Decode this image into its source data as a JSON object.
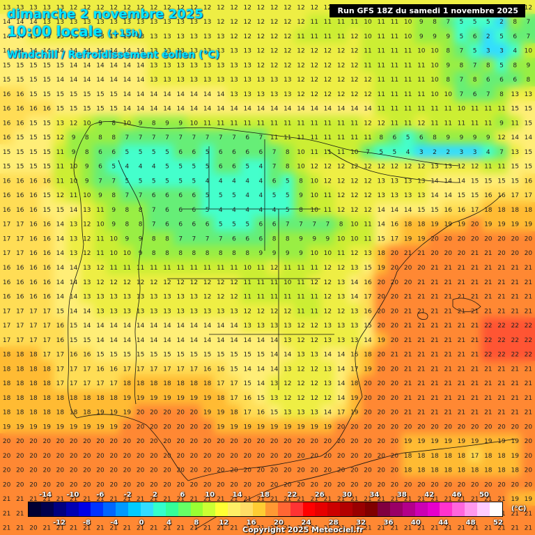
{
  "header": {
    "date_line": "dimanche 2 novembre 2025",
    "time_line": "10:00 locale",
    "lead_time": "(+15h)",
    "variable_line": "Windchill / Refroidissement éolien (°C)",
    "run_label": "Run GFS 18Z du samedi 1 novembre 2025"
  },
  "legend": {
    "unit": "(°C)",
    "top_labels": [
      "-14",
      "-10",
      "-6",
      "-2",
      "2",
      "6",
      "10",
      "14",
      "18",
      "22",
      "26",
      "30",
      "34",
      "38",
      "42",
      "46",
      "50"
    ],
    "bottom_labels": [
      "-12",
      "-8",
      "-4",
      "0",
      "4",
      "8",
      "12",
      "16",
      "20",
      "24",
      "28",
      "32",
      "36",
      "40",
      "44",
      "48",
      "52"
    ],
    "colors": [
      "#000033",
      "#00004d",
      "#000080",
      "#0000b3",
      "#0000e6",
      "#0033ff",
      "#0066ff",
      "#0099ff",
      "#00ccff",
      "#33ddff",
      "#33ffcc",
      "#33ff99",
      "#66ff66",
      "#99ff33",
      "#ccff33",
      "#ffff33",
      "#ffee66",
      "#ffdd66",
      "#ffcc33",
      "#ff9933",
      "#ff6633",
      "#ff3333",
      "#ff0000",
      "#e60000",
      "#cc0000",
      "#b30000",
      "#990000",
      "#800000",
      "#800040",
      "#990066",
      "#b3008a",
      "#cc00b3",
      "#e600cc",
      "#ff33cc",
      "#ff66dd",
      "#ff99ee",
      "#ffccff",
      "#ffffff"
    ]
  },
  "copyright": "Copyright 2025 Meteociel.fr",
  "grid": {
    "rows": [
      [
        13,
        13,
        13,
        13,
        13,
        12,
        12,
        12,
        12,
        12,
        12,
        12,
        12,
        12,
        12,
        12,
        12,
        12,
        12,
        12,
        12,
        12,
        12,
        12,
        12,
        12,
        12,
        12,
        12,
        12,
        12,
        12,
        12,
        12,
        12,
        12,
        12,
        12,
        12,
        12
      ],
      [
        14,
        14,
        14,
        13,
        13,
        13,
        13,
        13,
        13,
        13,
        13,
        13,
        13,
        13,
        13,
        13,
        12,
        12,
        12,
        12,
        12,
        12,
        12,
        11,
        11,
        11,
        11,
        10,
        11,
        11,
        10,
        9,
        8,
        7,
        5,
        5,
        5,
        2,
        8,
        7
      ],
      [
        14,
        14,
        13,
        13,
        13,
        13,
        13,
        13,
        13,
        13,
        13,
        13,
        13,
        13,
        13,
        13,
        13,
        12,
        12,
        12,
        12,
        12,
        11,
        11,
        11,
        11,
        12,
        10,
        11,
        11,
        10,
        9,
        9,
        9,
        5,
        6,
        2,
        5,
        6,
        7
      ],
      [
        14,
        14,
        14,
        14,
        14,
        14,
        14,
        14,
        14,
        14,
        14,
        13,
        13,
        13,
        13,
        13,
        13,
        13,
        13,
        12,
        12,
        12,
        12,
        12,
        12,
        12,
        12,
        11,
        11,
        11,
        11,
        10,
        10,
        8,
        7,
        5,
        3,
        3,
        4,
        10
      ],
      [
        15,
        15,
        15,
        15,
        15,
        14,
        14,
        14,
        14,
        14,
        14,
        13,
        13,
        13,
        13,
        13,
        13,
        13,
        13,
        12,
        12,
        12,
        12,
        12,
        12,
        12,
        12,
        11,
        11,
        11,
        11,
        11,
        10,
        9,
        8,
        7,
        8,
        5,
        8,
        9
      ],
      [
        15,
        15,
        15,
        15,
        14,
        14,
        14,
        14,
        14,
        14,
        14,
        13,
        13,
        13,
        13,
        13,
        13,
        13,
        13,
        13,
        13,
        13,
        12,
        12,
        12,
        12,
        12,
        12,
        11,
        11,
        11,
        11,
        10,
        8,
        7,
        8,
        6,
        6,
        6,
        8
      ],
      [
        16,
        16,
        15,
        15,
        15,
        15,
        15,
        15,
        15,
        14,
        14,
        14,
        14,
        14,
        14,
        14,
        14,
        13,
        13,
        13,
        13,
        13,
        12,
        12,
        12,
        12,
        12,
        12,
        11,
        11,
        11,
        11,
        10,
        10,
        7,
        6,
        7,
        8,
        13,
        13
      ],
      [
        16,
        16,
        16,
        16,
        15,
        15,
        15,
        15,
        15,
        14,
        14,
        14,
        14,
        14,
        14,
        14,
        14,
        14,
        14,
        14,
        14,
        14,
        14,
        14,
        14,
        14,
        14,
        14,
        11,
        11,
        11,
        11,
        11,
        11,
        10,
        11,
        11,
        11,
        15,
        15
      ],
      [
        16,
        16,
        15,
        15,
        13,
        12,
        10,
        9,
        8,
        10,
        9,
        8,
        9,
        9,
        10,
        11,
        11,
        11,
        11,
        11,
        11,
        11,
        11,
        11,
        11,
        11,
        11,
        12,
        12,
        11,
        11,
        12,
        11,
        11,
        11,
        11,
        11,
        9,
        11,
        15
      ],
      [
        16,
        15,
        15,
        15,
        12,
        9,
        8,
        8,
        8,
        7,
        7,
        7,
        7,
        7,
        7,
        7,
        7,
        7,
        6,
        7,
        11,
        11,
        11,
        11,
        11,
        11,
        11,
        11,
        8,
        6,
        5,
        6,
        8,
        9,
        9,
        9,
        9,
        12,
        14,
        14
      ],
      [
        15,
        15,
        15,
        15,
        11,
        9,
        8,
        6,
        6,
        5,
        5,
        5,
        5,
        6,
        6,
        5,
        6,
        6,
        6,
        6,
        7,
        8,
        10,
        11,
        11,
        11,
        10,
        7,
        5,
        5,
        4,
        3,
        2,
        2,
        3,
        3,
        4,
        7,
        13,
        15
      ],
      [
        15,
        15,
        15,
        15,
        11,
        10,
        9,
        6,
        5,
        4,
        4,
        4,
        5,
        5,
        5,
        5,
        6,
        6,
        5,
        4,
        7,
        8,
        10,
        12,
        12,
        12,
        12,
        12,
        12,
        12,
        12,
        12,
        13,
        13,
        12,
        12,
        11,
        11,
        15,
        15
      ],
      [
        16,
        16,
        16,
        16,
        11,
        10,
        9,
        7,
        7,
        5,
        5,
        5,
        5,
        5,
        5,
        4,
        4,
        4,
        4,
        4,
        6,
        5,
        8,
        10,
        12,
        12,
        12,
        12,
        13,
        13,
        13,
        13,
        14,
        14,
        14,
        15,
        15,
        15,
        15,
        16
      ],
      [
        16,
        16,
        16,
        15,
        12,
        11,
        10,
        9,
        8,
        7,
        7,
        6,
        6,
        6,
        6,
        5,
        5,
        5,
        4,
        4,
        5,
        5,
        9,
        10,
        11,
        12,
        12,
        12,
        13,
        13,
        13,
        13,
        14,
        14,
        15,
        15,
        16,
        16,
        17,
        17
      ],
      [
        16,
        16,
        16,
        15,
        15,
        14,
        13,
        11,
        9,
        8,
        8,
        7,
        6,
        6,
        6,
        5,
        4,
        4,
        4,
        4,
        4,
        5,
        8,
        10,
        11,
        12,
        12,
        12,
        14,
        14,
        14,
        15,
        15,
        16,
        16,
        17,
        18,
        18,
        18,
        18
      ],
      [
        17,
        17,
        16,
        16,
        14,
        13,
        12,
        10,
        9,
        8,
        8,
        7,
        6,
        6,
        6,
        6,
        5,
        5,
        5,
        6,
        6,
        7,
        7,
        7,
        7,
        8,
        10,
        11,
        14,
        16,
        18,
        18,
        19,
        19,
        19,
        20,
        19,
        19,
        19,
        19
      ],
      [
        17,
        17,
        16,
        16,
        14,
        13,
        12,
        11,
        10,
        9,
        9,
        8,
        8,
        7,
        7,
        7,
        7,
        6,
        6,
        6,
        8,
        8,
        9,
        9,
        9,
        10,
        10,
        11,
        15,
        17,
        19,
        19,
        20,
        20,
        20,
        20,
        20,
        20,
        20,
        20
      ],
      [
        17,
        17,
        16,
        16,
        14,
        13,
        12,
        11,
        10,
        10,
        9,
        8,
        8,
        8,
        8,
        8,
        8,
        8,
        8,
        9,
        9,
        9,
        9,
        10,
        10,
        11,
        12,
        13,
        18,
        20,
        21,
        21,
        20,
        20,
        20,
        21,
        21,
        20,
        20,
        20
      ],
      [
        16,
        16,
        16,
        16,
        14,
        14,
        13,
        12,
        11,
        11,
        11,
        11,
        11,
        11,
        11,
        11,
        11,
        11,
        10,
        11,
        12,
        11,
        11,
        11,
        12,
        12,
        13,
        15,
        19,
        20,
        20,
        20,
        21,
        21,
        21,
        21,
        21,
        21,
        21,
        21
      ],
      [
        16,
        16,
        16,
        16,
        14,
        14,
        13,
        12,
        12,
        12,
        12,
        12,
        12,
        12,
        12,
        12,
        12,
        12,
        11,
        11,
        11,
        10,
        11,
        12,
        12,
        13,
        14,
        16,
        20,
        20,
        20,
        21,
        21,
        21,
        21,
        21,
        21,
        21,
        21,
        21
      ],
      [
        16,
        16,
        16,
        16,
        14,
        14,
        13,
        13,
        13,
        13,
        13,
        13,
        13,
        13,
        13,
        12,
        12,
        12,
        11,
        11,
        11,
        11,
        11,
        11,
        12,
        13,
        14,
        17,
        20,
        20,
        21,
        21,
        21,
        21,
        21,
        21,
        21,
        21,
        21,
        21
      ],
      [
        17,
        17,
        17,
        17,
        15,
        14,
        14,
        13,
        13,
        13,
        13,
        13,
        13,
        13,
        13,
        13,
        13,
        13,
        12,
        12,
        12,
        12,
        11,
        11,
        12,
        12,
        13,
        16,
        20,
        20,
        21,
        21,
        21,
        21,
        21,
        21,
        21,
        21,
        21,
        21
      ],
      [
        17,
        17,
        17,
        17,
        16,
        15,
        14,
        14,
        14,
        14,
        14,
        14,
        14,
        14,
        14,
        14,
        14,
        14,
        13,
        13,
        13,
        13,
        12,
        12,
        13,
        13,
        13,
        15,
        20,
        20,
        21,
        21,
        21,
        21,
        21,
        21,
        22,
        22,
        22,
        22
      ],
      [
        17,
        17,
        17,
        17,
        16,
        15,
        15,
        14,
        14,
        14,
        14,
        14,
        14,
        14,
        14,
        14,
        14,
        14,
        14,
        14,
        14,
        13,
        12,
        12,
        13,
        13,
        13,
        14,
        19,
        20,
        21,
        21,
        21,
        21,
        21,
        21,
        22,
        22,
        22,
        22
      ],
      [
        18,
        18,
        18,
        17,
        17,
        16,
        16,
        15,
        15,
        15,
        15,
        15,
        15,
        15,
        15,
        15,
        15,
        15,
        15,
        15,
        14,
        14,
        13,
        13,
        14,
        14,
        16,
        18,
        20,
        21,
        21,
        21,
        21,
        21,
        21,
        21,
        22,
        22,
        22,
        22
      ],
      [
        18,
        18,
        18,
        18,
        17,
        17,
        17,
        16,
        16,
        17,
        17,
        17,
        17,
        17,
        17,
        16,
        16,
        15,
        14,
        14,
        14,
        13,
        12,
        12,
        13,
        14,
        17,
        19,
        20,
        20,
        21,
        21,
        21,
        21,
        21,
        21,
        21,
        21,
        21,
        21
      ],
      [
        18,
        18,
        18,
        18,
        17,
        17,
        17,
        17,
        17,
        18,
        18,
        18,
        18,
        18,
        18,
        18,
        17,
        17,
        15,
        14,
        13,
        12,
        12,
        12,
        13,
        14,
        18,
        20,
        20,
        20,
        21,
        21,
        21,
        21,
        21,
        21,
        21,
        21,
        21,
        21
      ],
      [
        18,
        18,
        18,
        18,
        18,
        18,
        18,
        18,
        18,
        19,
        19,
        19,
        19,
        19,
        19,
        19,
        18,
        17,
        16,
        15,
        13,
        12,
        12,
        12,
        12,
        14,
        19,
        20,
        20,
        20,
        21,
        21,
        21,
        21,
        21,
        21,
        21,
        21,
        21,
        21
      ],
      [
        18,
        18,
        18,
        18,
        18,
        18,
        18,
        19,
        19,
        19,
        20,
        20,
        20,
        20,
        20,
        19,
        19,
        18,
        17,
        16,
        15,
        13,
        13,
        13,
        14,
        17,
        19,
        20,
        20,
        20,
        21,
        21,
        21,
        21,
        21,
        21,
        21,
        21,
        21,
        21
      ],
      [
        19,
        19,
        19,
        19,
        19,
        19,
        19,
        19,
        19,
        20,
        20,
        20,
        20,
        20,
        20,
        20,
        19,
        19,
        19,
        19,
        19,
        19,
        19,
        19,
        19,
        20,
        20,
        20,
        20,
        20,
        20,
        20,
        20,
        20,
        20,
        20,
        20,
        20,
        20,
        20
      ],
      [
        20,
        20,
        20,
        20,
        20,
        20,
        20,
        20,
        20,
        20,
        20,
        20,
        20,
        20,
        20,
        20,
        20,
        20,
        20,
        20,
        20,
        20,
        20,
        20,
        20,
        20,
        20,
        20,
        20,
        20,
        19,
        19,
        19,
        19,
        19,
        19,
        19,
        19,
        19,
        20
      ],
      [
        20,
        20,
        20,
        20,
        20,
        20,
        20,
        20,
        20,
        20,
        20,
        20,
        20,
        20,
        20,
        20,
        20,
        20,
        20,
        20,
        20,
        20,
        20,
        20,
        20,
        20,
        20,
        20,
        20,
        20,
        18,
        18,
        18,
        18,
        18,
        17,
        18,
        18,
        19,
        20
      ],
      [
        20,
        20,
        20,
        20,
        20,
        20,
        20,
        20,
        20,
        20,
        20,
        20,
        20,
        20,
        20,
        20,
        20,
        20,
        20,
        20,
        20,
        20,
        20,
        20,
        20,
        20,
        20,
        20,
        20,
        20,
        18,
        18,
        18,
        18,
        18,
        18,
        18,
        18,
        18,
        20
      ],
      [
        20,
        20,
        20,
        20,
        20,
        20,
        20,
        20,
        20,
        20,
        20,
        20,
        20,
        20,
        20,
        20,
        20,
        20,
        20,
        20,
        20,
        20,
        20,
        20,
        20,
        20,
        20,
        20,
        20,
        20,
        20,
        20,
        20,
        20,
        20,
        20,
        20,
        20,
        20,
        20
      ],
      [
        21,
        21,
        21,
        21,
        21,
        21,
        21,
        21,
        21,
        21,
        21,
        21,
        21,
        21,
        21,
        21,
        21,
        21,
        21,
        21,
        21,
        21,
        21,
        21,
        21,
        21,
        21,
        21,
        21,
        21,
        21,
        21,
        21,
        21,
        21,
        21,
        21,
        21,
        19,
        19
      ],
      [
        21,
        21,
        21,
        21,
        21,
        21,
        21,
        21,
        21,
        21,
        21,
        21,
        21,
        21,
        21,
        21,
        21,
        21,
        21,
        21,
        21,
        21,
        21,
        21,
        21,
        21,
        21,
        21,
        21,
        21,
        21,
        21,
        21,
        21,
        21,
        21,
        21,
        21,
        21,
        21
      ],
      [
        21,
        21,
        20,
        21,
        21,
        21,
        21,
        21,
        21,
        21,
        21,
        21,
        21,
        21,
        21,
        21,
        21,
        21,
        21,
        21,
        21,
        21,
        21,
        21,
        21,
        21,
        21,
        21,
        21,
        21,
        21,
        21,
        21,
        21,
        21,
        21,
        21,
        21,
        21,
        21
      ]
    ]
  }
}
